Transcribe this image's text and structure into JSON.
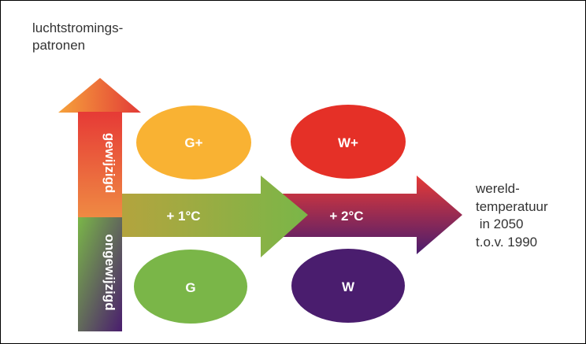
{
  "diagram": {
    "y_axis_title_line1": "luchtstromings-",
    "y_axis_title_line2": "patronen",
    "y_upper_label": "gewijzigd",
    "y_lower_label": "ongewijzigd",
    "x_step1_label": "+ 1°C",
    "x_step2_label": "+ 2°C",
    "x_axis_title": "wereld-\ntemperatuur\n in 2050\nt.o.v. 1990",
    "scenarios": [
      {
        "label": "G+",
        "color": "#f9b233"
      },
      {
        "label": "W+",
        "color": "#e53027"
      },
      {
        "label": "G",
        "color": "#7ab648"
      },
      {
        "label": "W",
        "color": "#4a1d6e"
      }
    ],
    "colors": {
      "orange": "#ef8a43",
      "red": "#e63a36",
      "green": "#7ab648",
      "purple": "#4a1d6e"
    }
  }
}
